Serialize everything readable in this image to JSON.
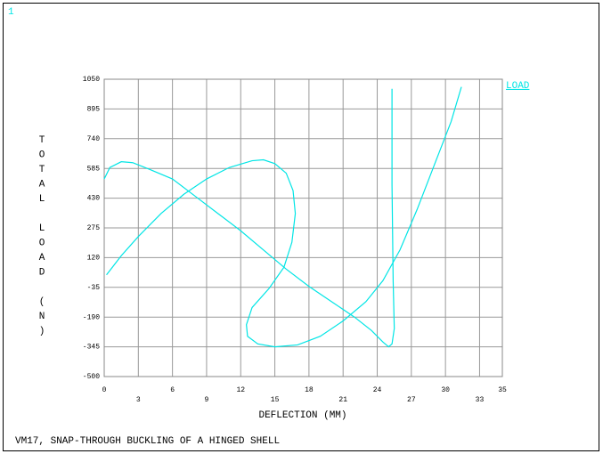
{
  "chart_data": {
    "type": "line",
    "window_number": "1",
    "xlabel": "DEFLECTION (MM)",
    "ylabel": "TOTAL LOAD (N)",
    "footer": "VM17, SNAP-THROUGH BUCKLING OF A HINGED SHELL",
    "xlim": [
      0,
      35
    ],
    "ylim": [
      -500,
      1050
    ],
    "xticks": [
      0,
      3,
      6,
      9,
      12,
      15,
      18,
      21,
      24,
      27,
      30,
      33,
      35
    ],
    "yticks": [
      -500,
      -345,
      -190,
      -35,
      120,
      275,
      430,
      585,
      740,
      895,
      1050
    ],
    "grid": true,
    "series": [
      {
        "name": "LOAD",
        "color": "#00e5e5",
        "x": [
          0,
          0.5,
          1.5,
          2.5,
          4,
          6,
          8,
          10,
          12,
          14,
          16,
          18,
          20,
          22,
          23.5,
          24.5,
          25,
          25.3,
          25.5,
          25.4,
          25.3,
          25.3
        ],
        "values": [
          530,
          590,
          620,
          615,
          580,
          530,
          440,
          350,
          260,
          160,
          60,
          -30,
          -110,
          -190,
          -260,
          -320,
          -345,
          -330,
          -250,
          0,
          500,
          1000
        ]
      },
      {
        "color": "#00e5e5",
        "x": [
          0.2,
          1.5,
          3,
          5,
          7,
          9,
          11,
          13,
          14,
          15,
          16,
          16.6,
          16.8,
          16.5,
          15.8,
          14.5,
          13,
          12.5,
          12.6,
          13.5,
          15,
          17,
          19,
          21,
          23,
          24.5,
          26,
          27.5,
          29,
          30.5,
          31.4
        ],
        "values": [
          30,
          130,
          230,
          350,
          450,
          530,
          590,
          625,
          630,
          610,
          560,
          470,
          350,
          200,
          70,
          -40,
          -140,
          -230,
          -290,
          -330,
          -345,
          -335,
          -290,
          -210,
          -110,
          0,
          160,
          370,
          600,
          830,
          1010
        ]
      }
    ]
  }
}
